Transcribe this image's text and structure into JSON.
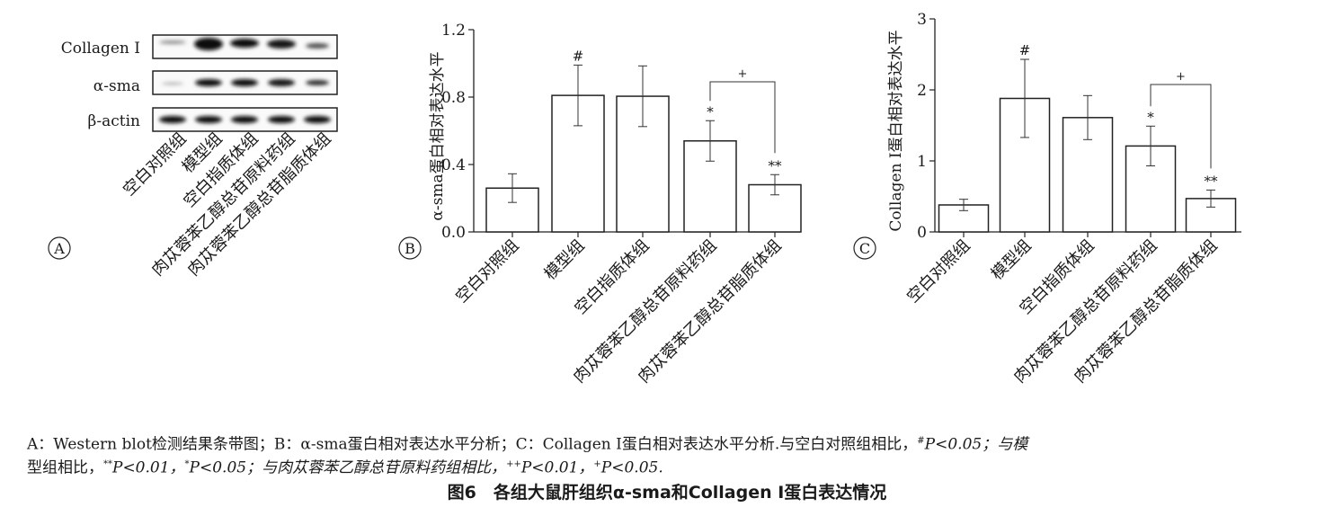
{
  "panels": {
    "a": {
      "letter": "A",
      "proteins": [
        "Collagen I",
        "α-sma",
        "β-actin"
      ]
    },
    "b": {
      "letter": "B"
    },
    "c": {
      "letter": "C"
    }
  },
  "groups": [
    "空白对照组",
    "模型组",
    "空白指质体组",
    "肉苁蓉苯乙醇总苷原料药组",
    "肉苁蓉苯乙醇总苷脂质体组"
  ],
  "chart_data": [
    {
      "panel": "B",
      "type": "bar",
      "categories": [
        "空白对照组",
        "模型组",
        "空白指质体组",
        "肉苁蓉苯乙醇总苷原料药组",
        "肉苁蓉苯乙醇总苷脂质体组"
      ],
      "values": [
        0.26,
        0.81,
        0.805,
        0.54,
        0.28
      ],
      "errors": [
        0.085,
        0.18,
        0.18,
        0.12,
        0.06
      ],
      "annotations": [
        "",
        "#",
        "",
        "*",
        "**"
      ],
      "bracket_label": "+",
      "ylabel": "α-sma蛋白相对表达水平",
      "ylim": [
        0,
        1.2
      ],
      "yticks": [
        "0.0",
        "0.4",
        "0.8",
        "1.2"
      ],
      "grid": false
    },
    {
      "panel": "C",
      "type": "bar",
      "categories": [
        "空白对照组",
        "模型组",
        "空白指质体组",
        "肉苁蓉苯乙醇总苷原料药组",
        "肉苁蓉苯乙醇总苷脂质体组"
      ],
      "values": [
        0.38,
        1.88,
        1.61,
        1.21,
        0.47
      ],
      "errors": [
        0.08,
        0.55,
        0.31,
        0.28,
        0.12
      ],
      "annotations": [
        "",
        "#",
        "",
        "*",
        "**"
      ],
      "bracket_label": "+",
      "ylabel": "Collagen I蛋白相对表达水平",
      "ylim": [
        0,
        3
      ],
      "yticks": [
        "0",
        "1",
        "2",
        "3"
      ],
      "grid": false
    }
  ],
  "caption": {
    "line1_a": "A：Western blot检测结果条带图；B：α-sma蛋白相对表达水平分析；C：Collagen  Ⅰ蛋白相对表达水平分析.与空白对照组相比，",
    "line1_sup1": "#",
    "line1_b": "P<0.05；与模",
    "line2_a": "型组相比，",
    "line2_sup1": "**",
    "line2_b": "P<0.01，",
    "line2_sup2": "*",
    "line2_c": "P<0.05；与肉苁蓉苯乙醇总苷原料药组相比，",
    "line2_sup3": "++",
    "line2_d": "P<0.01，",
    "line2_sup4": "+",
    "line2_e": "P<0.05."
  },
  "figure_title": "图6　各组大鼠肝组织α-sma和Collagen  Ⅰ蛋白表达情况"
}
